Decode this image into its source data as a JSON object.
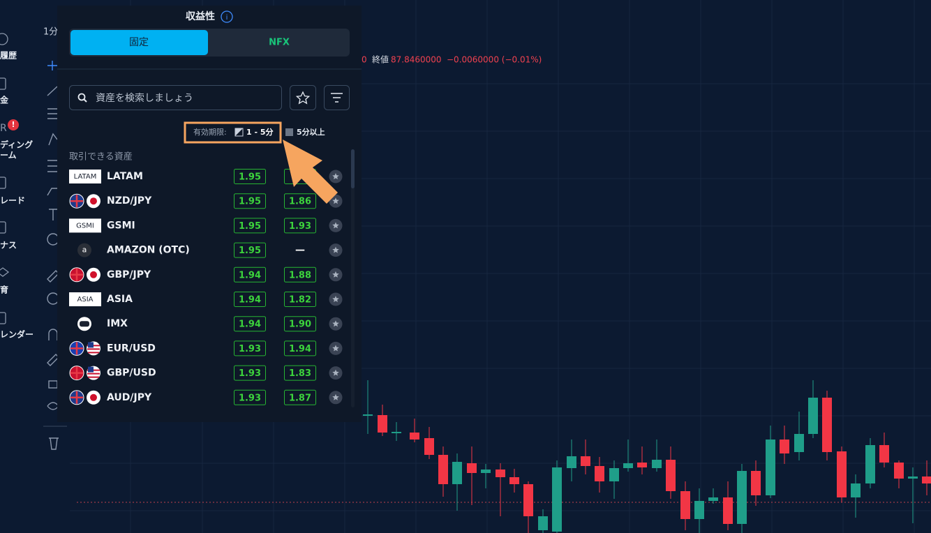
{
  "timeframe": "1分",
  "chart_header": {
    "prefix": "0",
    "close_label": "終値",
    "close": "87.8460000",
    "change": "−0.0060000 (−0.01%)"
  },
  "sidebar": {
    "labels": [
      "履歴",
      "金",
      "ディング",
      "ーム",
      "レード",
      "ナス",
      "育",
      "レンダー"
    ],
    "badge": "!"
  },
  "panel": {
    "title": "収益性",
    "tabs": [
      "固定",
      "NFX"
    ],
    "search_placeholder": "資産を検索しましょう",
    "expiry": {
      "label": "有効期限:",
      "options": [
        "1 - 5分",
        "5分以上"
      ]
    },
    "section_title": "取引できる資産",
    "assets": [
      {
        "name": "LATAM",
        "badge": "LATAM",
        "payouts": [
          "1.95"
        ]
      },
      {
        "name": "NZD/JPY",
        "payouts": [
          "1.95",
          "1.86"
        ]
      },
      {
        "name": "GSMI",
        "badge": "GSMI",
        "payouts": [
          "1.95",
          "1.93"
        ]
      },
      {
        "name": "AMAZON (OTC)",
        "badge": "a",
        "payouts": [
          "1.95",
          "—"
        ]
      },
      {
        "name": "GBP/JPY",
        "payouts": [
          "1.94",
          "1.88"
        ]
      },
      {
        "name": "ASIA",
        "badge": "ASIA",
        "payouts": [
          "1.94",
          "1.82"
        ]
      },
      {
        "name": "IMX",
        "payouts": [
          "1.94",
          "1.90"
        ]
      },
      {
        "name": "EUR/USD",
        "payouts": [
          "1.93",
          "1.94"
        ]
      },
      {
        "name": "GBP/USD",
        "payouts": [
          "1.93",
          "1.83"
        ]
      },
      {
        "name": "AUD/JPY",
        "payouts": [
          "1.93",
          "1.87"
        ]
      }
    ]
  }
}
